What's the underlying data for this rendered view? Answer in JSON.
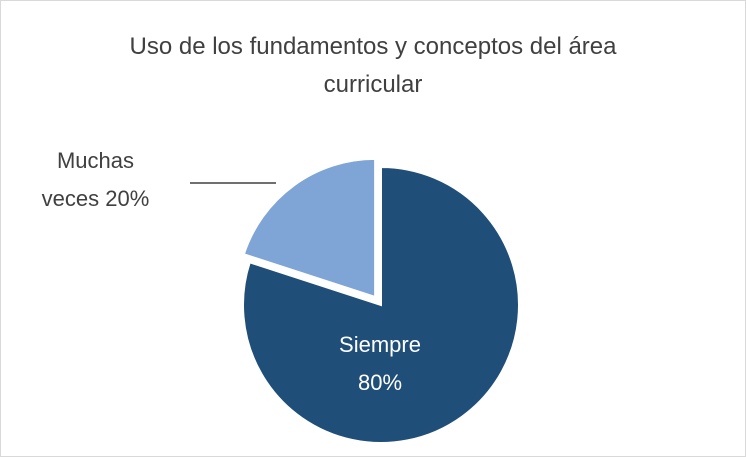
{
  "chart_data": {
    "type": "pie",
    "title": "Uso de los fundamentos y conceptos del área curricular",
    "categories": [
      "Siempre",
      "Muchas veces"
    ],
    "values": [
      80,
      20
    ],
    "value_labels": [
      "80%",
      "20%"
    ],
    "colors": [
      "#1f4e79",
      "#7fa4d6"
    ]
  }
}
